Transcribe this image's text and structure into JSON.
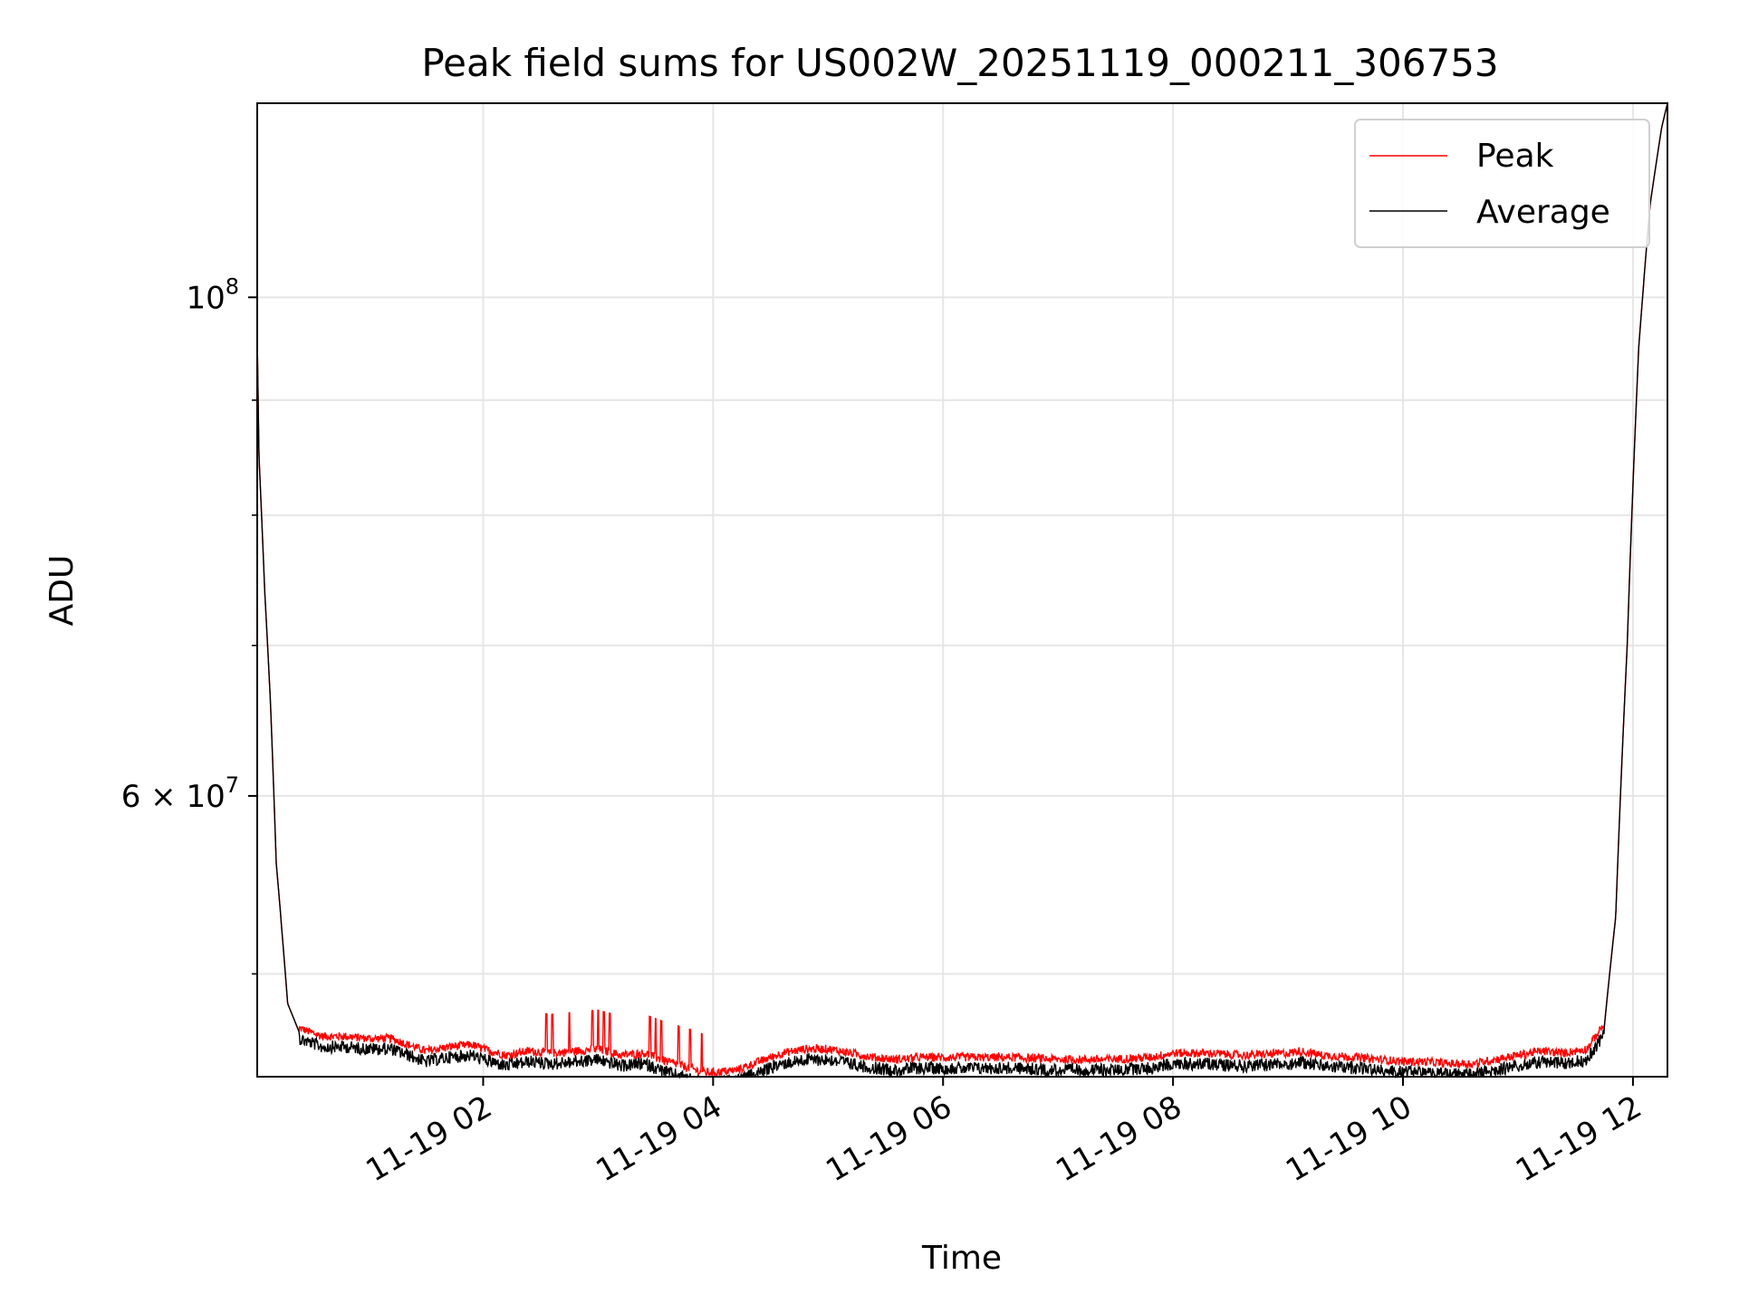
{
  "chart_data": {
    "type": "line",
    "title": "Peak field sums for US002W_20251119_000211_306753",
    "xlabel": "Time",
    "ylabel": "ADU",
    "yscale": "log",
    "grid": true,
    "legend_position": "top-right",
    "xlim_hours": [
      0.035,
      12.3
    ],
    "ylim": [
      45000000,
      122000000
    ],
    "x_ticks": [
      {
        "hours": 2,
        "label": "11-19 02"
      },
      {
        "hours": 4,
        "label": "11-19 04"
      },
      {
        "hours": 6,
        "label": "11-19 06"
      },
      {
        "hours": 8,
        "label": "11-19 08"
      },
      {
        "hours": 10,
        "label": "11-19 10"
      },
      {
        "hours": 12,
        "label": "11-19 12"
      }
    ],
    "y_major_ticks": [
      {
        "value": 100000000,
        "base": "10",
        "exponent": "8"
      },
      {
        "value": 60000000,
        "base": "6 × 10",
        "exponent": "7"
      }
    ],
    "y_minor_ticks": [
      50000000,
      70000000,
      80000000,
      90000000
    ],
    "series": [
      {
        "name": "Peak",
        "color": "#ff0000",
        "noise_above": 400000,
        "spike_hours": [
          2.55,
          2.6,
          2.75,
          2.95,
          3.0,
          3.05,
          3.1,
          3.45,
          3.5,
          3.55,
          3.7,
          3.8,
          3.9
        ]
      },
      {
        "name": "Average",
        "color": "#000000",
        "noise_below": 600000
      }
    ],
    "baseline": {
      "hours": [
        0.035,
        0.05,
        0.1,
        0.15,
        0.2,
        0.3,
        0.4,
        0.5,
        0.6,
        0.8,
        1.0,
        1.2,
        1.4,
        1.5,
        1.7,
        1.9,
        2.0,
        2.2,
        2.4,
        2.6,
        2.8,
        3.0,
        3.2,
        3.4,
        3.6,
        3.8,
        3.9,
        4.0,
        4.2,
        4.4,
        4.6,
        4.8,
        5.0,
        5.2,
        5.4,
        5.6,
        5.8,
        6.0,
        6.3,
        6.6,
        7.0,
        7.4,
        7.8,
        8.0,
        8.3,
        8.6,
        9.0,
        9.1,
        9.3,
        9.6,
        9.8,
        10.0,
        10.2,
        10.4,
        10.6,
        10.8,
        11.0,
        11.2,
        11.4,
        11.6,
        11.75,
        11.85,
        11.95,
        12.05,
        12.15,
        12.25,
        12.3
      ],
      "values": [
        96000000,
        85000000,
        74000000,
        66000000,
        56000000,
        48500000,
        47100000,
        46900000,
        46700000,
        46700000,
        46600000,
        46600000,
        46200000,
        46000000,
        46200000,
        46300000,
        46100000,
        45800000,
        46000000,
        45900000,
        46000000,
        46100000,
        45800000,
        45900000,
        45500000,
        45200000,
        45000000,
        45000000,
        45100000,
        45500000,
        45900000,
        46100000,
        46100000,
        45900000,
        45700000,
        45600000,
        45700000,
        45700000,
        45700000,
        45700000,
        45600000,
        45600000,
        45700000,
        45900000,
        45900000,
        45800000,
        45900000,
        46000000,
        45800000,
        45700000,
        45600000,
        45500000,
        45500000,
        45400000,
        45400000,
        45600000,
        45800000,
        46000000,
        45900000,
        46100000,
        47300000,
        53000000,
        70000000,
        95000000,
        110000000,
        119000000,
        122000000
      ]
    }
  }
}
